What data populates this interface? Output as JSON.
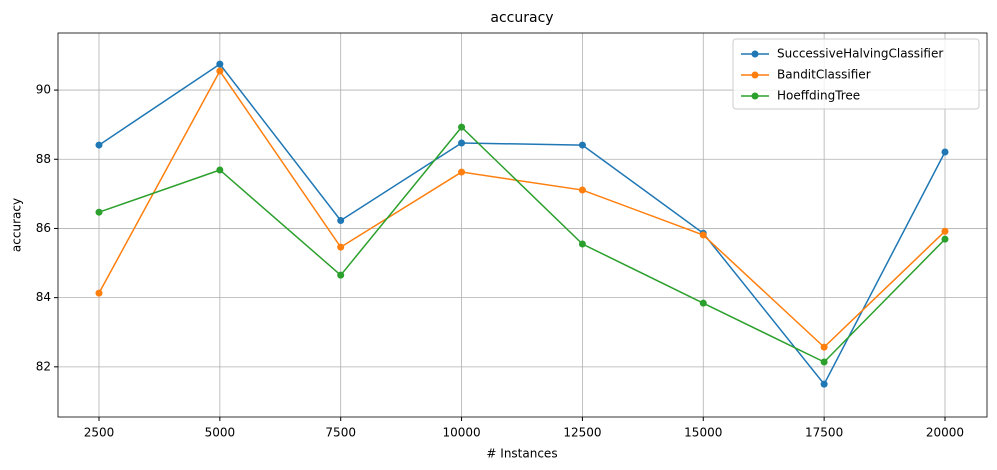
{
  "chart_data": {
    "type": "line",
    "title": "accuracy",
    "x_label": "# Instances",
    "y_label": "accuracy",
    "x": [
      2500,
      5000,
      7500,
      10000,
      12500,
      15000,
      17500,
      20000
    ],
    "series": [
      {
        "name": "SuccessiveHalvingClassifier",
        "color": "#1f77b4",
        "values": [
          88.41,
          90.75,
          86.23,
          88.47,
          88.41,
          85.86,
          81.5,
          88.21
        ]
      },
      {
        "name": "BanditClassifier",
        "color": "#ff7f0e",
        "values": [
          84.13,
          90.55,
          85.46,
          87.63,
          87.11,
          85.81,
          82.57,
          85.92
        ]
      },
      {
        "name": "HoeffdingTree",
        "color": "#2ca02c",
        "values": [
          86.47,
          87.69,
          84.65,
          88.93,
          85.55,
          83.84,
          82.14,
          85.69
        ]
      }
    ],
    "xlim": [
      1652,
      20869
    ],
    "ylim": [
      80.55,
      91.65
    ],
    "xticks": [
      2500,
      5000,
      7500,
      10000,
      12500,
      15000,
      17500,
      20000
    ],
    "yticks": [
      82,
      84,
      86,
      88,
      90
    ],
    "grid": true,
    "legend": "upper-right"
  }
}
